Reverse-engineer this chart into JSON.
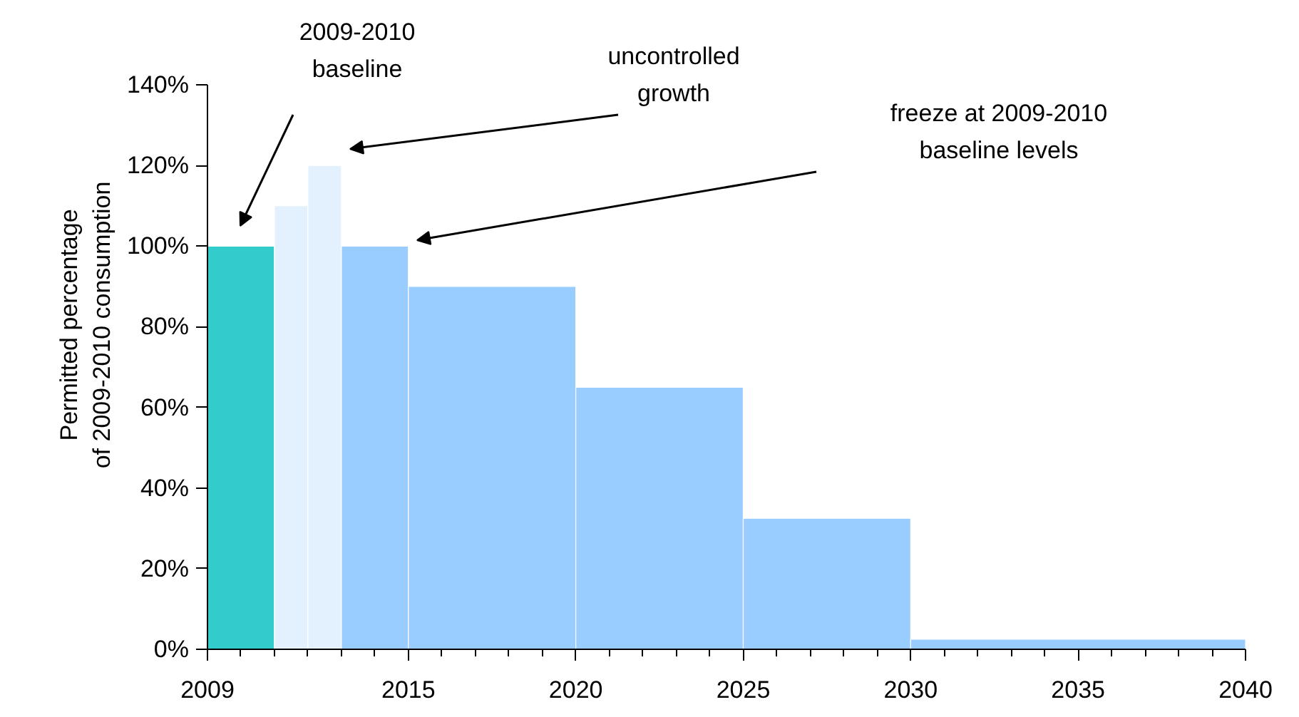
{
  "chart_data": {
    "type": "histogram",
    "ylabel": "Permitted percentage\nof 2009-2010 consumption",
    "bins": [
      2009,
      2011,
      2012,
      2013,
      2015,
      2020,
      2025,
      2030,
      2040
    ],
    "values": [
      100,
      110,
      120,
      100,
      90,
      65,
      32.5,
      2.5
    ],
    "colors": [
      "#33cccc",
      "#e3f0fd",
      "#e3f0fd",
      "#99ccff",
      "#99ccff",
      "#99ccff",
      "#99ccff",
      "#99ccff"
    ],
    "xlim": [
      2009,
      2040
    ],
    "xticks": [
      2009,
      2015,
      2020,
      2025,
      2030,
      2035,
      2040
    ],
    "ylim": [
      0,
      140
    ],
    "yticks": [
      {
        "value": 0,
        "label": "0%"
      },
      {
        "value": 20,
        "label": "20%"
      },
      {
        "value": 40,
        "label": "40%"
      },
      {
        "value": 60,
        "label": "60%"
      },
      {
        "value": 80,
        "label": "80%"
      },
      {
        "value": 100,
        "label": "100%"
      },
      {
        "value": 120,
        "label": "120%"
      },
      {
        "value": 140,
        "label": "140%"
      }
    ],
    "annotations": [
      "2009-2010\nbaseline",
      "uncontrolled\ngrowth",
      "freeze at 2009-2010\nbaseline levels"
    ]
  }
}
